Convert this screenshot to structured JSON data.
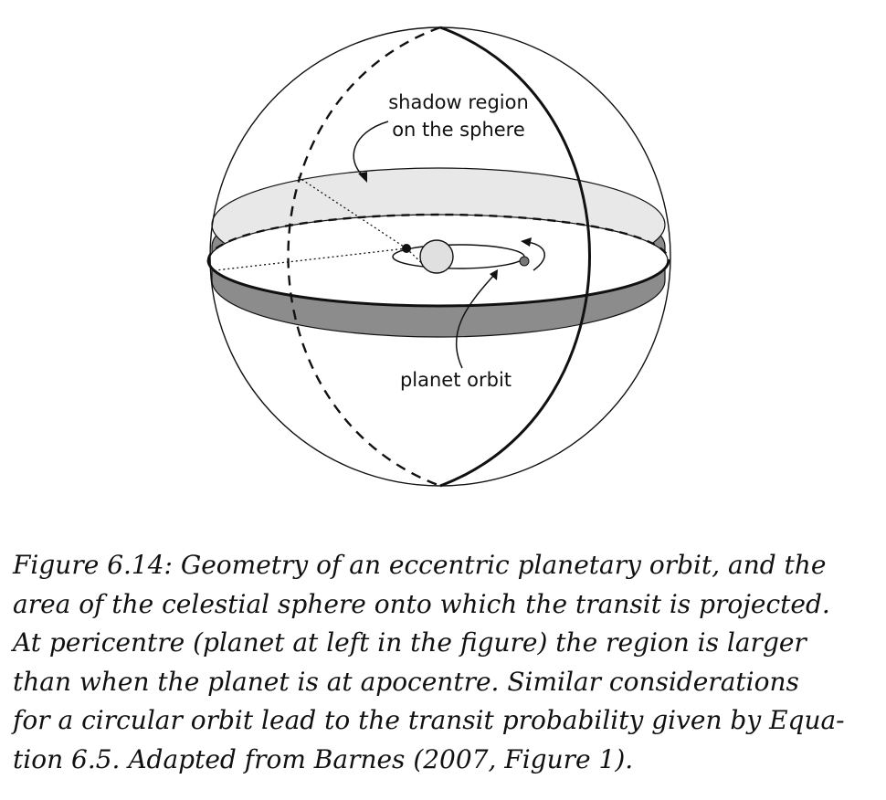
{
  "diagram": {
    "labels": {
      "shadow_region": [
        "shadow region",
        "on the sphere"
      ],
      "planet_orbit": "planet orbit"
    }
  },
  "caption": {
    "lines": [
      "Figure 6.14: Geometry of an eccentric planetary orbit, and the",
      "area of the celestial sphere onto which the transit is projected.",
      "At pericentre (planet at left in the figure) the region is larger",
      "than when the planet is at apocentre.  Similar considerations",
      "for a circular orbit lead to the transit probability given by Equa-",
      "tion 6.5. Adapted from Barnes (2007, Figure 1)."
    ]
  }
}
